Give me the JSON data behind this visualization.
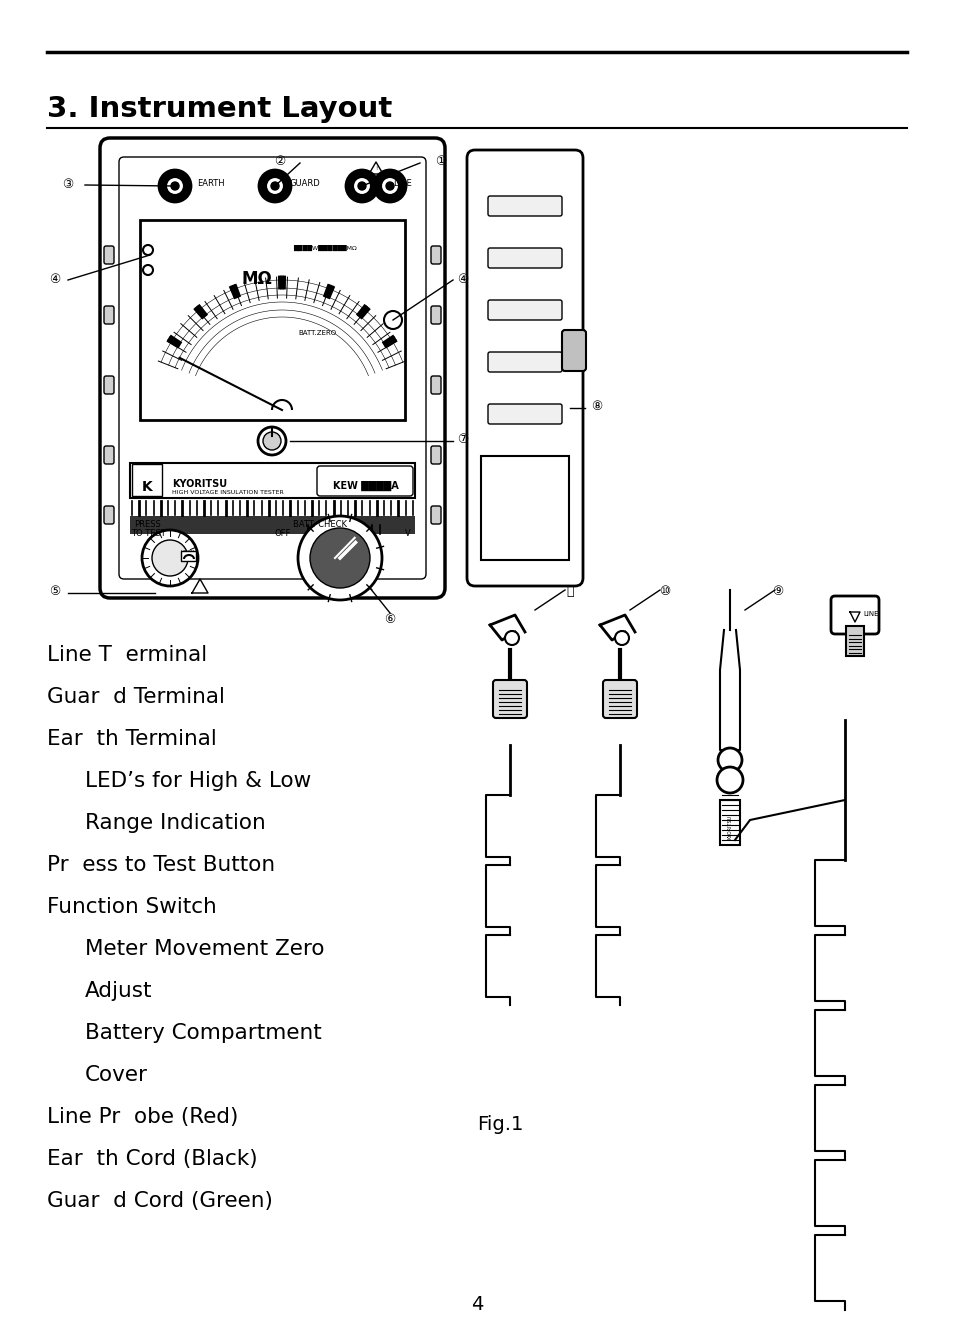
{
  "title": "3. Instrument Layout",
  "page_number": "4",
  "background_color": "#ffffff",
  "text_color": "#000000",
  "legend_lines": [
    "Line T  erminal",
    "Guar  d Terminal",
    "Ear  th Terminal",
    "   LED’s for High & Low",
    "   Range Indication",
    "Pr  ess to Test Button",
    "Function Switch",
    "   Meter Movement Zero",
    "   Adjust",
    "   Battery Compartment",
    "   Cover",
    "Line Pr  obe (Red)",
    "Ear  th Cord (Black)",
    "Guar  d Cord (Green)"
  ],
  "fig1_label": "Fig.1"
}
